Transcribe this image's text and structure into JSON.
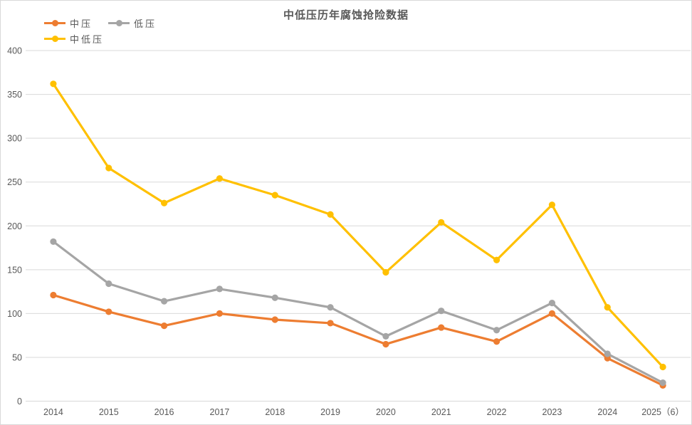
{
  "title": "中低压历年腐蚀抢险数据",
  "colors": {
    "title_text": "#595959",
    "axis_text": "#595959",
    "gridline": "#d9d9d9",
    "frame_border": "#d9d9d9",
    "background": "#ffffff"
  },
  "legend": {
    "position": "top-left",
    "rows": [
      [
        0,
        1
      ],
      [
        2
      ]
    ],
    "items": [
      {
        "label": "中压",
        "color": "#ED7D31"
      },
      {
        "label": "低压",
        "color": "#A5A5A5"
      },
      {
        "label": "中低压",
        "color": "#FFC000"
      }
    ]
  },
  "chart_data": {
    "type": "line",
    "title": "中低压历年腐蚀抢险数据",
    "xlabel": "",
    "ylabel": "",
    "categories": [
      "2014",
      "2015",
      "2016",
      "2017",
      "2018",
      "2019",
      "2020",
      "2021",
      "2022",
      "2023",
      "2024",
      "2025（6）"
    ],
    "series": [
      {
        "name": "中压",
        "color": "#ED7D31",
        "values": [
          121,
          102,
          86,
          100,
          93,
          89,
          65,
          84,
          68,
          100,
          49,
          18
        ]
      },
      {
        "name": "低压",
        "color": "#A5A5A5",
        "values": [
          182,
          134,
          114,
          128,
          118,
          107,
          74,
          103,
          81,
          112,
          54,
          21
        ]
      },
      {
        "name": "中低压",
        "color": "#FFC000",
        "values": [
          362,
          266,
          226,
          254,
          235,
          213,
          147,
          204,
          161,
          224,
          107,
          39
        ]
      }
    ],
    "ylim": [
      0,
      400
    ],
    "yticks": [
      0,
      50,
      100,
      150,
      200,
      250,
      300,
      350,
      400
    ],
    "grid": true,
    "legend_position": "top-left",
    "marker": "circle"
  }
}
